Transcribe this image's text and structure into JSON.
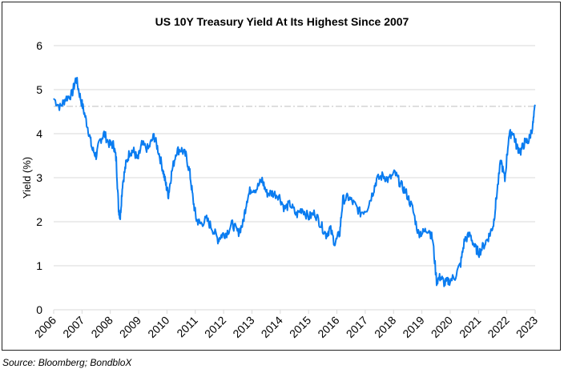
{
  "chart_data": {
    "type": "line",
    "title": "US 10Y Treasury Yield At Its Highest Since 2007",
    "xlabel": "",
    "ylabel": "Yield (%)",
    "xlim": [
      2006,
      2023
    ],
    "ylim": [
      0,
      6
    ],
    "x_ticks": [
      "2006",
      "2007",
      "2008",
      "2009",
      "2010",
      "2011",
      "2012",
      "2013",
      "2014",
      "2015",
      "2016",
      "2017",
      "2018",
      "2019",
      "2020",
      "2021",
      "2022",
      "2023"
    ],
    "y_ticks": [
      "0",
      "1",
      "2",
      "3",
      "4",
      "5",
      "6"
    ],
    "grid": true,
    "reference_line": {
      "value": 4.62,
      "style": "dash-dot"
    },
    "series": [
      {
        "name": "US 10Y Treasury Yield",
        "color": "#0a7cf0",
        "x": [
          2006.0,
          2006.23,
          2006.42,
          2006.65,
          2006.79,
          2006.93,
          2007.07,
          2007.22,
          2007.36,
          2007.5,
          2007.64,
          2007.78,
          2007.98,
          2008.12,
          2008.21,
          2008.29,
          2008.35,
          2008.43,
          2008.55,
          2008.69,
          2008.83,
          2008.97,
          2009.11,
          2009.34,
          2009.54,
          2009.68,
          2009.85,
          2009.96,
          2010.05,
          2010.16,
          2010.33,
          2010.5,
          2010.67,
          2010.81,
          2010.92,
          2011.04,
          2011.18,
          2011.4,
          2011.6,
          2011.8,
          2011.94,
          2012.11,
          2012.31,
          2012.51,
          2012.68,
          2012.82,
          2012.96,
          2013.16,
          2013.36,
          2013.52,
          2013.72,
          2013.95,
          2014.15,
          2014.35,
          2014.57,
          2014.77,
          2015.0,
          2015.22,
          2015.42,
          2015.62,
          2015.76,
          2015.93,
          2016.1,
          2016.21,
          2016.41,
          2016.61,
          2016.83,
          2017.06,
          2017.26,
          2017.4,
          2017.63,
          2017.82,
          2018.05,
          2018.25,
          2018.45,
          2018.67,
          2018.87,
          2019.04,
          2019.24,
          2019.38,
          2019.52,
          2019.66,
          2019.8,
          2019.95,
          2020.17,
          2020.37,
          2020.51,
          2020.71,
          2020.88,
          2021.02,
          2021.22,
          2021.39,
          2021.53,
          2021.64,
          2021.79,
          2021.93,
          2022.07,
          2022.21,
          2022.35,
          2022.49,
          2022.63,
          2022.78,
          2022.92,
          2023.0
        ],
        "y": [
          4.8,
          4.6,
          4.8,
          4.9,
          5.27,
          4.85,
          4.5,
          4.1,
          3.65,
          3.5,
          3.85,
          4.0,
          3.75,
          3.75,
          3.4,
          2.3,
          2.1,
          2.85,
          3.3,
          3.6,
          3.6,
          3.4,
          3.75,
          3.65,
          3.95,
          3.65,
          3.2,
          2.85,
          2.6,
          3.1,
          3.6,
          3.65,
          3.5,
          3.1,
          2.5,
          2.05,
          1.95,
          2.05,
          1.85,
          1.6,
          1.7,
          1.75,
          1.95,
          1.75,
          1.95,
          2.5,
          2.75,
          2.75,
          2.95,
          2.65,
          2.65,
          2.6,
          2.3,
          2.4,
          2.15,
          2.3,
          2.1,
          2.2,
          1.95,
          1.7,
          1.85,
          1.5,
          1.75,
          2.5,
          2.55,
          2.4,
          2.2,
          2.3,
          2.65,
          2.95,
          3.05,
          2.95,
          3.1,
          2.85,
          2.65,
          2.3,
          1.75,
          1.75,
          1.85,
          1.6,
          0.65,
          0.75,
          0.6,
          0.65,
          0.75,
          1.05,
          1.6,
          1.7,
          1.4,
          1.3,
          1.5,
          1.7,
          1.95,
          2.6,
          3.4,
          2.95,
          3.95,
          4.05,
          3.7,
          3.6,
          3.8,
          3.85,
          4.2,
          4.63
        ]
      }
    ]
  },
  "source": "Source: Bloomberg; BondbloX"
}
